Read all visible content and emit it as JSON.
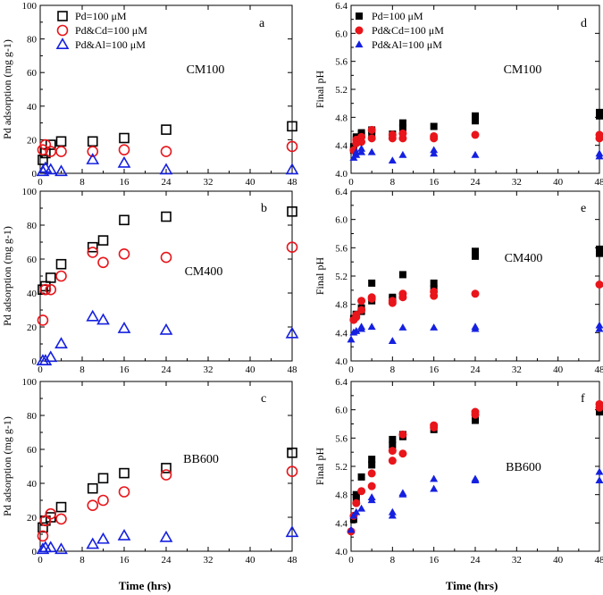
{
  "figure": {
    "xlabel_left": "Time (hrs)",
    "xlabel_right": "Time (hrs)"
  },
  "legend": {
    "items": [
      {
        "key": "pd",
        "label": "Pd=100 μM",
        "color": "#000000",
        "marker": "square"
      },
      {
        "key": "pdcd",
        "label": "Pd&Cd=100 μM",
        "color": "#e8151b",
        "marker": "circle"
      },
      {
        "key": "pdal",
        "label": "Pd&Al=100 μM",
        "color": "#1520e0",
        "marker": "triangle"
      }
    ]
  },
  "chart_data": [
    {
      "id": "a",
      "type": "scatter",
      "panel_letter": "a",
      "sample": "CM100",
      "ylabel": "Pd adsorption (mg g-1)",
      "xlabel": "",
      "xlim": [
        0,
        48
      ],
      "ylim": [
        0,
        100
      ],
      "xticks": [
        "0",
        "8",
        "16",
        "24",
        "32",
        "40",
        "48"
      ],
      "yticks": [
        "0",
        "20",
        "40",
        "60",
        "80",
        "100"
      ],
      "filled": false,
      "series": [
        {
          "name": "Pd=100 μM",
          "x": [
            0.5,
            1,
            2,
            4,
            10,
            16,
            24,
            48
          ],
          "y": [
            8,
            12,
            17,
            19,
            19,
            21,
            26,
            28
          ]
        },
        {
          "name": "Pd&Cd=100 μM",
          "x": [
            0.5,
            1,
            2,
            4,
            10,
            16,
            24,
            48
          ],
          "y": [
            14,
            17,
            13,
            13,
            13,
            14,
            13,
            16
          ]
        },
        {
          "name": "Pd&Al=100 μM",
          "x": [
            0.5,
            1,
            2,
            4,
            10,
            16,
            24,
            48
          ],
          "y": [
            1,
            3,
            2,
            1,
            8,
            6,
            2,
            2
          ]
        }
      ]
    },
    {
      "id": "b",
      "type": "scatter",
      "panel_letter": "b",
      "sample": "CM400",
      "ylabel": "Pd adsorption (mg g-1)",
      "xlabel": "",
      "xlim": [
        0,
        48
      ],
      "ylim": [
        0,
        100
      ],
      "xticks": [
        "0",
        "8",
        "16",
        "24",
        "32",
        "40",
        "48"
      ],
      "yticks": [
        "0",
        "20",
        "40",
        "60",
        "80",
        "100"
      ],
      "filled": false,
      "series": [
        {
          "name": "Pd=100 μM",
          "x": [
            0.5,
            1,
            2,
            4,
            10,
            12,
            16,
            24,
            48
          ],
          "y": [
            42,
            44,
            49,
            57,
            67,
            71,
            83,
            85,
            88
          ]
        },
        {
          "name": "Pd&Cd=100 μM",
          "x": [
            0.5,
            1,
            2,
            4,
            10,
            12,
            16,
            24,
            48
          ],
          "y": [
            24,
            42,
            42,
            50,
            64,
            58,
            63,
            61,
            67
          ]
        },
        {
          "name": "Pd&Al=100 μM",
          "x": [
            0.5,
            1,
            2,
            4,
            10,
            12,
            16,
            24,
            48
          ],
          "y": [
            0,
            0,
            2,
            10,
            26,
            24,
            19,
            18,
            16
          ]
        }
      ]
    },
    {
      "id": "c",
      "type": "scatter",
      "panel_letter": "c",
      "sample": "BB600",
      "ylabel": "Pd adsorption (mg g-1)",
      "xlabel": "Time (hrs)",
      "xlim": [
        0,
        48
      ],
      "ylim": [
        0,
        100
      ],
      "xticks": [
        "0",
        "8",
        "16",
        "24",
        "32",
        "40",
        "48"
      ],
      "yticks": [
        "0",
        "20",
        "40",
        "60",
        "80",
        "100"
      ],
      "filled": false,
      "series": [
        {
          "name": "Pd=100 μM",
          "x": [
            0.5,
            1,
            2,
            4,
            10,
            12,
            16,
            24,
            48
          ],
          "y": [
            14,
            18,
            20,
            26,
            37,
            43,
            46,
            49,
            58
          ]
        },
        {
          "name": "Pd&Cd=100 μM",
          "x": [
            0.5,
            1,
            2,
            4,
            10,
            12,
            16,
            24,
            48
          ],
          "y": [
            9,
            18,
            22,
            19,
            27,
            30,
            35,
            45,
            47
          ]
        },
        {
          "name": "Pd&Al=100 μM",
          "x": [
            0.5,
            1,
            2,
            4,
            10,
            12,
            16,
            24,
            48
          ],
          "y": [
            1,
            2,
            2,
            1,
            4,
            7,
            9,
            8,
            11
          ]
        }
      ]
    },
    {
      "id": "d",
      "type": "scatter",
      "panel_letter": "d",
      "sample": "CM100",
      "ylabel": "Final pH",
      "xlabel": "",
      "xlim": [
        0,
        48
      ],
      "ylim": [
        4.0,
        6.4
      ],
      "xticks": [
        "0",
        "8",
        "16",
        "24",
        "32",
        "40",
        "48"
      ],
      "yticks": [
        "4.0",
        "4.4",
        "4.8",
        "5.2",
        "5.6",
        "6.0",
        "6.4"
      ],
      "filled": true,
      "series": [
        {
          "name": "Pd=100 μM",
          "x": [
            0.5,
            0.5,
            1,
            1,
            2,
            2,
            4,
            4,
            8,
            10,
            10,
            16,
            24,
            24,
            48,
            48
          ],
          "y": [
            4.33,
            4.38,
            4.48,
            4.52,
            4.55,
            4.58,
            4.55,
            4.62,
            4.56,
            4.65,
            4.72,
            4.67,
            4.75,
            4.82,
            4.82,
            4.87
          ]
        },
        {
          "name": "Pd&Cd=100 μM",
          "x": [
            0.5,
            1,
            1,
            2,
            2,
            4,
            4,
            8,
            8,
            10,
            10,
            16,
            16,
            24,
            48,
            48
          ],
          "y": [
            4.33,
            4.43,
            4.48,
            4.45,
            4.52,
            4.5,
            4.62,
            4.5,
            4.55,
            4.5,
            4.57,
            4.5,
            4.53,
            4.55,
            4.5,
            4.55
          ]
        },
        {
          "name": "Pd&Al=100 μM",
          "x": [
            0.5,
            1,
            1,
            2,
            2,
            4,
            8,
            10,
            16,
            16,
            24,
            48,
            48
          ],
          "y": [
            4.22,
            4.26,
            4.3,
            4.3,
            4.35,
            4.3,
            4.18,
            4.26,
            4.28,
            4.33,
            4.26,
            4.24,
            4.28
          ]
        }
      ]
    },
    {
      "id": "e",
      "type": "scatter",
      "panel_letter": "e",
      "sample": "CM400",
      "ylabel": "Final pH",
      "xlabel": "",
      "xlim": [
        0,
        48
      ],
      "ylim": [
        4.0,
        6.4
      ],
      "xticks": [
        "0",
        "8",
        "16",
        "24",
        "32",
        "40",
        "48"
      ],
      "yticks": [
        "4.0",
        "4.4",
        "4.8",
        "5.2",
        "5.6",
        "6.0",
        "6.4"
      ],
      "filled": true,
      "series": [
        {
          "name": "Pd=100 μM",
          "x": [
            0.5,
            1,
            1,
            2,
            2,
            4,
            4,
            8,
            8,
            10,
            10,
            16,
            16,
            24,
            24,
            48,
            48
          ],
          "y": [
            4.6,
            4.65,
            4.66,
            4.7,
            4.75,
            4.85,
            5.1,
            4.88,
            4.9,
            4.92,
            5.22,
            5.02,
            5.1,
            5.48,
            5.55,
            5.52,
            5.58
          ]
        },
        {
          "name": "Pd&Cd=100 μM",
          "x": [
            0.5,
            1,
            1,
            2,
            2,
            4,
            4,
            8,
            8,
            10,
            10,
            16,
            16,
            24,
            48
          ],
          "y": [
            4.58,
            4.62,
            4.65,
            4.72,
            4.85,
            4.88,
            4.9,
            4.82,
            4.85,
            4.9,
            4.95,
            4.92,
            4.98,
            4.95,
            5.08
          ]
        },
        {
          "name": "Pd&Al=100 μM",
          "x": [
            0,
            0.5,
            1,
            2,
            2,
            4,
            8,
            10,
            16,
            24,
            24,
            48,
            48
          ],
          "y": [
            4.3,
            4.4,
            4.42,
            4.45,
            4.48,
            4.48,
            4.28,
            4.47,
            4.47,
            4.45,
            4.48,
            4.45,
            4.5
          ]
        }
      ]
    },
    {
      "id": "f",
      "type": "scatter",
      "panel_letter": "f",
      "sample": "BB600",
      "ylabel": "Final pH",
      "xlabel": "Time (hrs)",
      "xlim": [
        0,
        48
      ],
      "ylim": [
        4.0,
        6.4
      ],
      "xticks": [
        "0",
        "8",
        "16",
        "24",
        "32",
        "40",
        "48"
      ],
      "yticks": [
        "4.0",
        "4.4",
        "4.8",
        "5.2",
        "5.6",
        "6.0",
        "6.4"
      ],
      "filled": true,
      "series": [
        {
          "name": "Pd=100 μM",
          "x": [
            0.5,
            1,
            1,
            2,
            4,
            4,
            8,
            8,
            10,
            10,
            16,
            24,
            48,
            48
          ],
          "y": [
            4.45,
            4.75,
            4.8,
            5.05,
            5.22,
            5.3,
            5.5,
            5.58,
            5.62,
            5.65,
            5.72,
            5.85,
            5.97,
            6.05
          ]
        },
        {
          "name": "Pd&Cd=100 μM",
          "x": [
            0,
            0.5,
            1,
            2,
            4,
            4,
            8,
            8,
            10,
            10,
            16,
            16,
            24,
            24,
            48,
            48
          ],
          "y": [
            4.28,
            4.5,
            4.68,
            4.85,
            4.92,
            5.1,
            5.28,
            5.42,
            5.38,
            5.65,
            5.75,
            5.78,
            5.93,
            5.97,
            6.03,
            6.08
          ]
        },
        {
          "name": "Pd&Al=100 μM",
          "x": [
            0,
            0.5,
            1,
            2,
            4,
            4,
            8,
            8,
            10,
            10,
            16,
            16,
            24,
            24,
            48,
            48
          ],
          "y": [
            4.3,
            4.5,
            4.55,
            4.6,
            4.72,
            4.76,
            4.5,
            4.55,
            4.8,
            4.82,
            4.88,
            5.02,
            5.0,
            5.02,
            5.0,
            5.12
          ]
        }
      ]
    }
  ]
}
